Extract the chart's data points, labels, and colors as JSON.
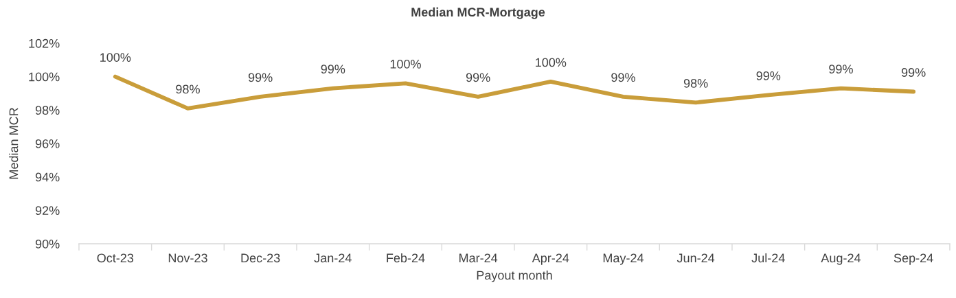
{
  "chart_data": {
    "type": "line",
    "title": "Median MCR-Mortgage",
    "xlabel": "Payout month",
    "ylabel": "Median MCR",
    "categories": [
      "Oct-23",
      "Nov-23",
      "Dec-23",
      "Jan-24",
      "Feb-24",
      "Mar-24",
      "Apr-24",
      "May-24",
      "Jun-24",
      "Jul-24",
      "Aug-24",
      "Sep-24"
    ],
    "values": [
      100.0,
      98.1,
      98.8,
      99.3,
      99.6,
      98.8,
      99.7,
      98.8,
      98.45,
      98.9,
      99.3,
      99.1
    ],
    "value_labels": [
      "100%",
      "98%",
      "99%",
      "99%",
      "100%",
      "99%",
      "100%",
      "99%",
      "98%",
      "99%",
      "99%",
      "99%"
    ],
    "color": "#c99d3a",
    "ylim": [
      90,
      102
    ],
    "yticks": [
      {
        "value": 90,
        "label": "90%"
      },
      {
        "value": 92,
        "label": "92%"
      },
      {
        "value": 94,
        "label": "94%"
      },
      {
        "value": 96,
        "label": "96%"
      },
      {
        "value": 98,
        "label": "98%"
      },
      {
        "value": 100,
        "label": "100%"
      },
      {
        "value": 102,
        "label": "102%"
      }
    ],
    "grid": false,
    "marker": "none",
    "line_style": "solid"
  }
}
